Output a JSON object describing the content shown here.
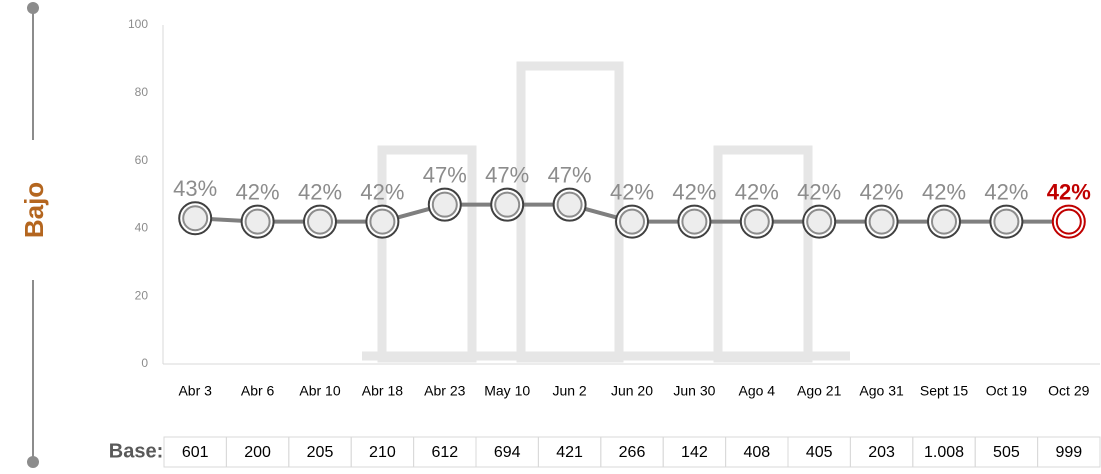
{
  "chart_data": {
    "type": "line",
    "side_label": "Bajo",
    "categories": [
      "Abr 3",
      "Abr 6",
      "Abr 10",
      "Abr 18",
      "Abr 23",
      "May 10",
      "Jun 2",
      "Jun 20",
      "Jun 30",
      "Ago 4",
      "Ago 21",
      "Ago 31",
      "Sept 15",
      "Oct 19",
      "Oct 29"
    ],
    "values": [
      43,
      42,
      42,
      42,
      47,
      47,
      47,
      42,
      42,
      42,
      42,
      42,
      42,
      42,
      42
    ],
    "value_labels": [
      "43%",
      "42%",
      "42%",
      "42%",
      "47%",
      "47%",
      "47%",
      "42%",
      "42%",
      "42%",
      "42%",
      "42%",
      "42%",
      "42%",
      "42%"
    ],
    "color": "#7f7f7f",
    "point_colors": [
      "#7f7f7f",
      "#7f7f7f",
      "#7f7f7f",
      "#7f7f7f",
      "#7f7f7f",
      "#7f7f7f",
      "#7f7f7f",
      "#7f7f7f",
      "#7f7f7f",
      "#7f7f7f",
      "#7f7f7f",
      "#7f7f7f",
      "#7f7f7f",
      "#7f7f7f",
      "#c00000"
    ],
    "ylim": [
      0,
      100
    ],
    "yticks": [
      0,
      20,
      40,
      60,
      80,
      100
    ],
    "grid": false
  },
  "base": {
    "label": "Base:",
    "values": [
      "601",
      "200",
      "205",
      "210",
      "612",
      "694",
      "421",
      "266",
      "142",
      "408",
      "405",
      "203",
      "1.008",
      "505",
      "999"
    ]
  }
}
